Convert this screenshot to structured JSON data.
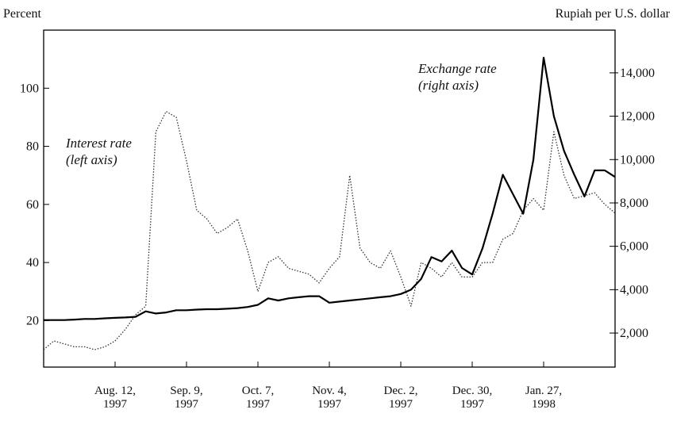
{
  "chart_data": {
    "type": "line",
    "y_label": "Percent",
    "y2_label": "Rupiah per U.S. dollar",
    "annotations": [
      "Exchange rate\n(right axis)",
      "Interest rate\n(left axis)"
    ],
    "x": [
      "1997-07-15",
      "1997-07-19",
      "1997-07-23",
      "1997-07-27",
      "1997-07-31",
      "1997-08-04",
      "1997-08-08",
      "1997-08-12",
      "1997-08-16",
      "1997-08-20",
      "1997-08-24",
      "1997-08-28",
      "1997-09-01",
      "1997-09-05",
      "1997-09-09",
      "1997-09-13",
      "1997-09-17",
      "1997-09-21",
      "1997-09-25",
      "1997-09-29",
      "1997-10-03",
      "1997-10-07",
      "1997-10-11",
      "1997-10-15",
      "1997-10-19",
      "1997-10-23",
      "1997-10-27",
      "1997-10-31",
      "1997-11-04",
      "1997-11-08",
      "1997-11-12",
      "1997-11-16",
      "1997-11-20",
      "1997-11-24",
      "1997-11-28",
      "1997-12-02",
      "1997-12-06",
      "1997-12-10",
      "1997-12-14",
      "1997-12-18",
      "1997-12-22",
      "1997-12-26",
      "1997-12-30",
      "1998-01-03",
      "1998-01-07",
      "1998-01-11",
      "1998-01-15",
      "1998-01-19",
      "1998-01-23",
      "1998-01-27",
      "1998-01-31",
      "1998-02-04",
      "1998-02-08",
      "1998-02-12",
      "1998-02-16",
      "1998-02-20",
      "1998-02-24"
    ],
    "series": [
      {
        "name": "Interest rate",
        "color": "#333333",
        "dash": true,
        "axis": "y",
        "values": [
          10,
          13,
          12,
          11,
          11,
          10,
          11,
          13,
          17,
          22,
          25,
          85,
          92,
          90,
          75,
          58,
          55,
          50,
          52,
          55,
          44,
          30,
          40,
          42,
          38,
          37,
          36,
          33,
          38,
          42,
          70,
          45,
          40,
          38,
          44,
          35,
          25,
          40,
          38,
          35,
          40,
          35,
          35,
          40,
          40,
          48,
          50,
          58,
          62,
          58,
          85,
          70,
          62,
          63,
          64,
          60,
          57
        ]
      },
      {
        "name": "Exchange rate",
        "color": "#000000",
        "dash": false,
        "axis": "y2",
        "values": [
          2600,
          2600,
          2600,
          2620,
          2650,
          2650,
          2680,
          2700,
          2720,
          2750,
          3000,
          2900,
          2950,
          3050,
          3050,
          3080,
          3100,
          3100,
          3120,
          3150,
          3200,
          3300,
          3600,
          3500,
          3600,
          3650,
          3700,
          3700,
          3400,
          3450,
          3500,
          3550,
          3600,
          3650,
          3700,
          3800,
          4000,
          4500,
          5500,
          5300,
          5800,
          5000,
          4700,
          5900,
          7500,
          9300,
          8400,
          7500,
          10000,
          14700,
          12000,
          10400,
          9300,
          8300,
          9500,
          9500,
          9200
        ]
      }
    ],
    "ylim": [
      4,
      120
    ],
    "yticks": [
      20,
      40,
      60,
      80,
      100
    ],
    "y2lim": [
      430,
      15970
    ],
    "y2ticks": [
      {
        "value": 2000,
        "label": "2,000"
      },
      {
        "value": 4000,
        "label": "4,000"
      },
      {
        "value": 6000,
        "label": "6,000"
      },
      {
        "value": 8000,
        "label": "8,000"
      },
      {
        "value": 10000,
        "label": "10,000"
      },
      {
        "value": 12000,
        "label": "12,000"
      },
      {
        "value": 14000,
        "label": "14,000"
      }
    ],
    "xlim": [
      "1997-07-15",
      "1998-02-24"
    ],
    "xticks": [
      {
        "value": "1997-08-12",
        "label": "Aug. 12,\n1997"
      },
      {
        "value": "1997-09-09",
        "label": "Sep. 9,\n1997"
      },
      {
        "value": "1997-10-07",
        "label": "Oct. 7,\n1997"
      },
      {
        "value": "1997-11-04",
        "label": "Nov. 4,\n1997"
      },
      {
        "value": "1997-12-02",
        "label": "Dec. 2,\n1997"
      },
      {
        "value": "1997-12-30",
        "label": "Dec. 30,\n1997"
      },
      {
        "value": "1998-01-27",
        "label": "Jan. 27,\n1998"
      }
    ]
  }
}
